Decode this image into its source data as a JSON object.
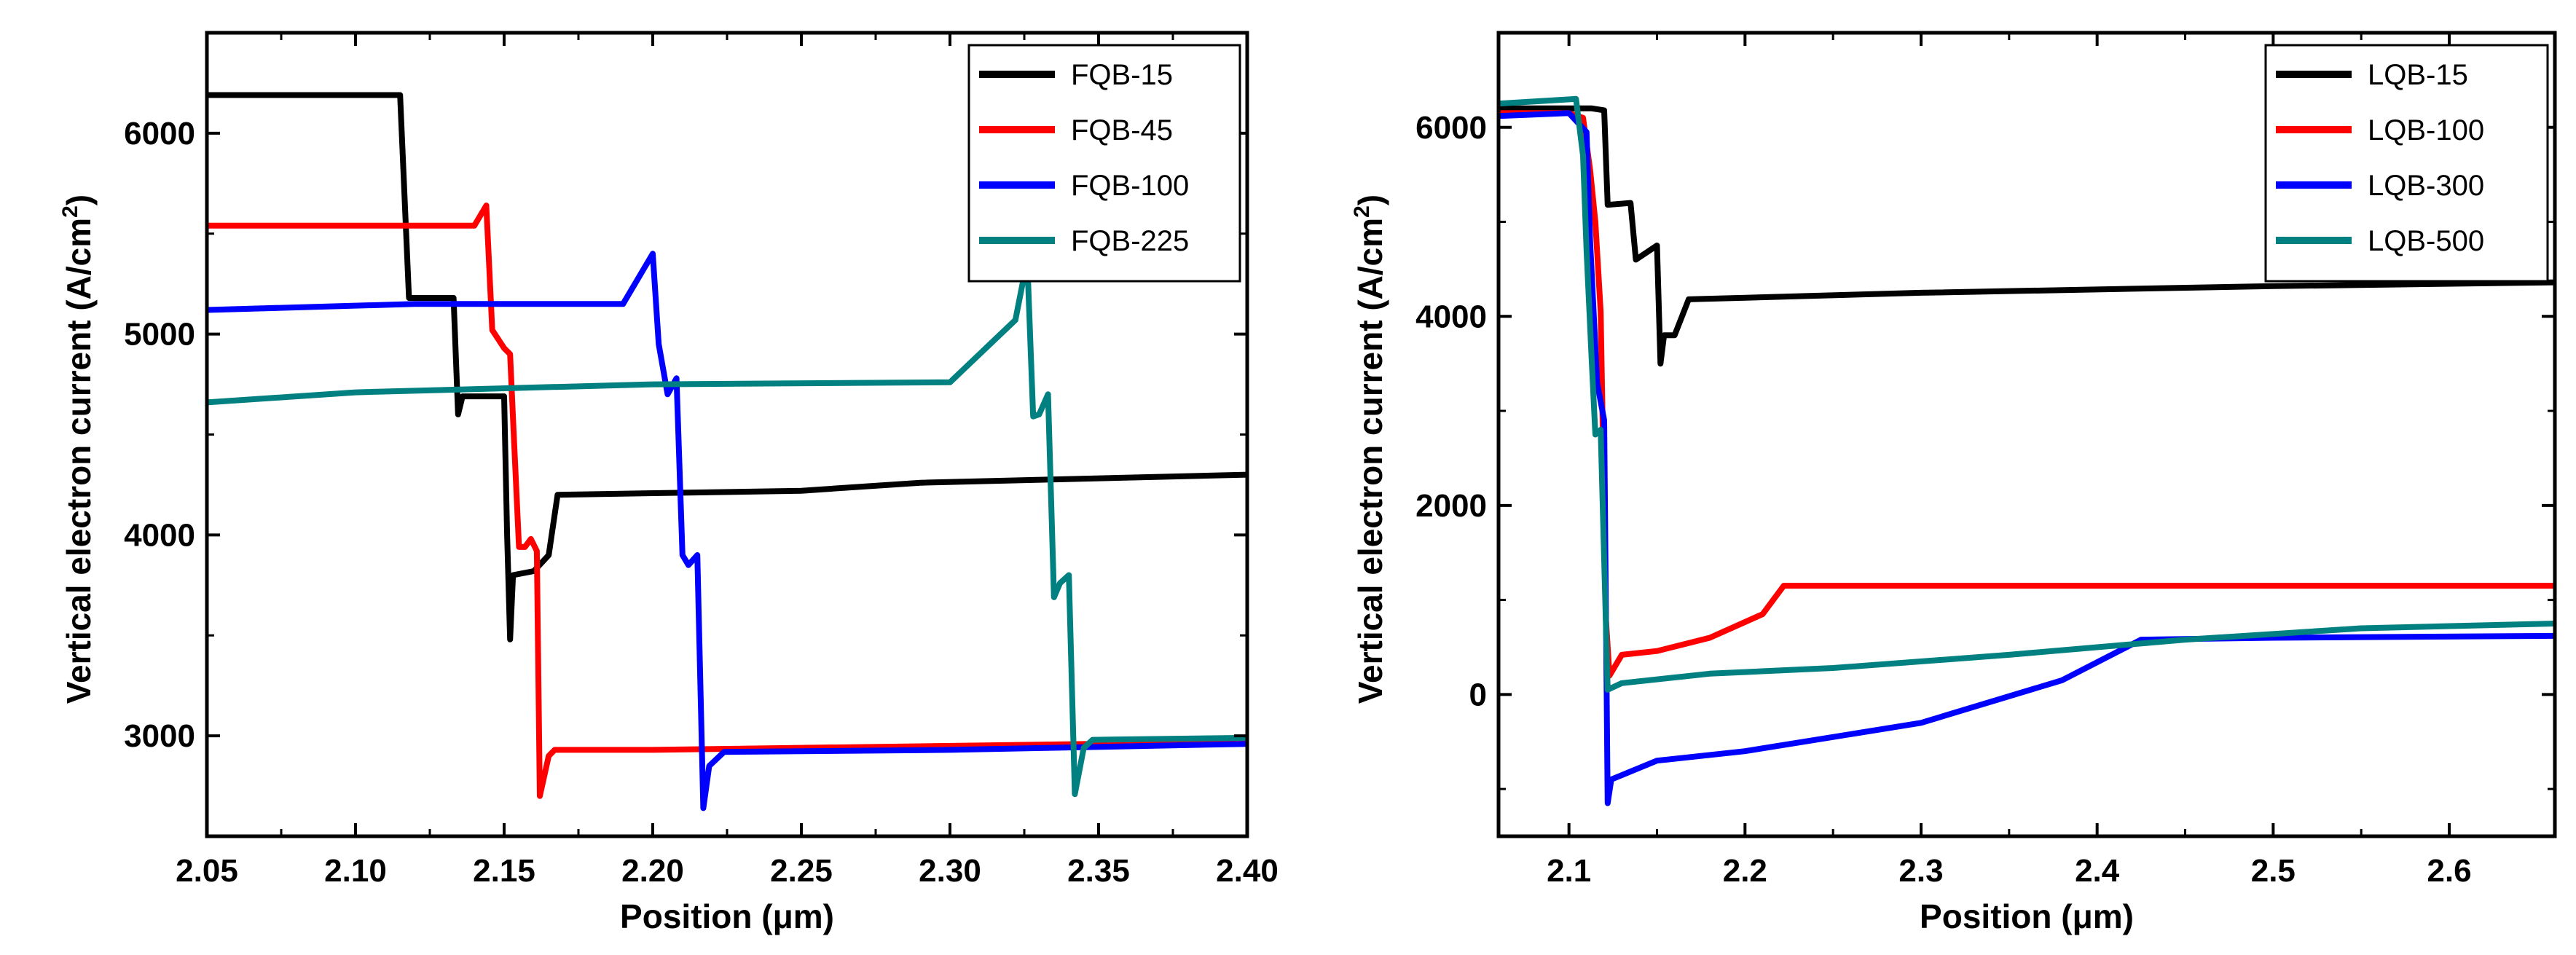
{
  "chart_data": [
    {
      "type": "line",
      "xlabel": "Position (μm)",
      "ylabel": "Vertical electron current (A/cm²)",
      "ylabel_base": "Vertical electron current (A/cm",
      "ylabel_sup": "2",
      "ylabel_close": ")",
      "xlim": [
        2.05,
        2.4
      ],
      "ylim": [
        2500,
        6500
      ],
      "xticks": [
        2.05,
        2.1,
        2.15,
        2.2,
        2.25,
        2.3,
        2.35,
        2.4
      ],
      "xtick_labels": [
        "2.05",
        "2.10",
        "2.15",
        "2.20",
        "2.25",
        "2.30",
        "2.35",
        "2.40"
      ],
      "yticks": [
        3000,
        4000,
        5000,
        6000
      ],
      "ytick_labels": [
        "3000",
        "4000",
        "5000",
        "6000"
      ],
      "legend_position": "top-right",
      "series": [
        {
          "name": "FQB-15",
          "color": "#000000",
          "points": [
            [
              2.05,
              6190
            ],
            [
              2.115,
              6190
            ],
            [
              2.118,
              5180
            ],
            [
              2.133,
              5180
            ],
            [
              2.1345,
              4600
            ],
            [
              2.136,
              4690
            ],
            [
              2.15,
              4690
            ],
            [
              2.151,
              4000
            ],
            [
              2.152,
              3480
            ],
            [
              2.153,
              3800
            ],
            [
              2.16,
              3820
            ],
            [
              2.165,
              3900
            ],
            [
              2.168,
              4200
            ],
            [
              2.25,
              4220
            ],
            [
              2.29,
              4260
            ],
            [
              2.4,
              4300
            ]
          ]
        },
        {
          "name": "FQB-45",
          "color": "#ff0000",
          "points": [
            [
              2.05,
              5540
            ],
            [
              2.14,
              5540
            ],
            [
              2.144,
              5640
            ],
            [
              2.146,
              5020
            ],
            [
              2.15,
              4930
            ],
            [
              2.152,
              4900
            ],
            [
              2.153,
              4580
            ],
            [
              2.155,
              3940
            ],
            [
              2.157,
              3940
            ],
            [
              2.159,
              3980
            ],
            [
              2.161,
              3920
            ],
            [
              2.162,
              2700
            ],
            [
              2.165,
              2900
            ],
            [
              2.167,
              2930
            ],
            [
              2.2,
              2930
            ],
            [
              2.4,
              2970
            ]
          ]
        },
        {
          "name": "FQB-100",
          "color": "#0000ff",
          "points": [
            [
              2.05,
              5120
            ],
            [
              2.12,
              5150
            ],
            [
              2.19,
              5150
            ],
            [
              2.2,
              5400
            ],
            [
              2.202,
              4950
            ],
            [
              2.205,
              4700
            ],
            [
              2.208,
              4780
            ],
            [
              2.21,
              3900
            ],
            [
              2.212,
              3850
            ],
            [
              2.215,
              3900
            ],
            [
              2.217,
              2640
            ],
            [
              2.219,
              2850
            ],
            [
              2.224,
              2920
            ],
            [
              2.3,
              2930
            ],
            [
              2.4,
              2960
            ]
          ]
        },
        {
          "name": "FQB-225",
          "color": "#008080",
          "points": [
            [
              2.05,
              4660
            ],
            [
              2.1,
              4710
            ],
            [
              2.2,
              4750
            ],
            [
              2.3,
              4760
            ],
            [
              2.322,
              5070
            ],
            [
              2.326,
              5370
            ],
            [
              2.328,
              4590
            ],
            [
              2.33,
              4600
            ],
            [
              2.333,
              4700
            ],
            [
              2.335,
              3690
            ],
            [
              2.337,
              3760
            ],
            [
              2.34,
              3800
            ],
            [
              2.342,
              2710
            ],
            [
              2.345,
              2940
            ],
            [
              2.348,
              2980
            ],
            [
              2.4,
              2990
            ]
          ]
        }
      ]
    },
    {
      "type": "line",
      "xlabel": "Position (μm)",
      "ylabel": "Vertical electron current (A/cm²)",
      "ylabel_base": "Vertical electron current (A/cm",
      "ylabel_sup": "2",
      "ylabel_close": ")",
      "xlim": [
        2.06,
        2.66
      ],
      "ylim": [
        -1500,
        7000
      ],
      "xticks": [
        2.1,
        2.2,
        2.3,
        2.4,
        2.5,
        2.6
      ],
      "xtick_labels": [
        "2.1",
        "2.2",
        "2.3",
        "2.4",
        "2.5",
        "2.6"
      ],
      "yticks": [
        0,
        2000,
        4000,
        6000
      ],
      "ytick_labels": [
        "0",
        "2000",
        "4000",
        "6000"
      ],
      "legend_position": "top-right",
      "series": [
        {
          "name": "LQB-15",
          "color": "#000000",
          "points": [
            [
              2.06,
              6200
            ],
            [
              2.108,
              6200
            ],
            [
              2.113,
              6200
            ],
            [
              2.12,
              6180
            ],
            [
              2.122,
              5180
            ],
            [
              2.135,
              5200
            ],
            [
              2.138,
              4600
            ],
            [
              2.15,
              4750
            ],
            [
              2.152,
              3500
            ],
            [
              2.154,
              3800
            ],
            [
              2.16,
              3800
            ],
            [
              2.168,
              4180
            ],
            [
              2.3,
              4250
            ],
            [
              2.5,
              4320
            ],
            [
              2.66,
              4360
            ]
          ]
        },
        {
          "name": "LQB-100",
          "color": "#ff0000",
          "points": [
            [
              2.06,
              6150
            ],
            [
              2.1,
              6150
            ],
            [
              2.108,
              6100
            ],
            [
              2.112,
              5550
            ],
            [
              2.115,
              5000
            ],
            [
              2.118,
              4050
            ],
            [
              2.119,
              3000
            ],
            [
              2.121,
              800
            ],
            [
              2.123,
              200
            ],
            [
              2.13,
              420
            ],
            [
              2.15,
              460
            ],
            [
              2.18,
              600
            ],
            [
              2.21,
              850
            ],
            [
              2.222,
              1150
            ],
            [
              2.3,
              1150
            ],
            [
              2.66,
              1150
            ]
          ]
        },
        {
          "name": "LQB-300",
          "color": "#0000ff",
          "points": [
            [
              2.06,
              6120
            ],
            [
              2.1,
              6150
            ],
            [
              2.11,
              5950
            ],
            [
              2.112,
              4800
            ],
            [
              2.116,
              3300
            ],
            [
              2.12,
              2900
            ],
            [
              2.122,
              -1150
            ],
            [
              2.124,
              -900
            ],
            [
              2.15,
              -700
            ],
            [
              2.2,
              -600
            ],
            [
              2.3,
              -300
            ],
            [
              2.38,
              150
            ],
            [
              2.425,
              580
            ],
            [
              2.5,
              600
            ],
            [
              2.66,
              620
            ]
          ]
        },
        {
          "name": "LQB-500",
          "color": "#008080",
          "points": [
            [
              2.06,
              6250
            ],
            [
              2.104,
              6300
            ],
            [
              2.108,
              5700
            ],
            [
              2.11,
              4700
            ],
            [
              2.113,
              3500
            ],
            [
              2.115,
              2750
            ],
            [
              2.118,
              2800
            ],
            [
              2.122,
              50
            ],
            [
              2.13,
              120
            ],
            [
              2.18,
              220
            ],
            [
              2.25,
              280
            ],
            [
              2.35,
              420
            ],
            [
              2.45,
              580
            ],
            [
              2.55,
              700
            ],
            [
              2.66,
              750
            ]
          ]
        }
      ]
    }
  ]
}
